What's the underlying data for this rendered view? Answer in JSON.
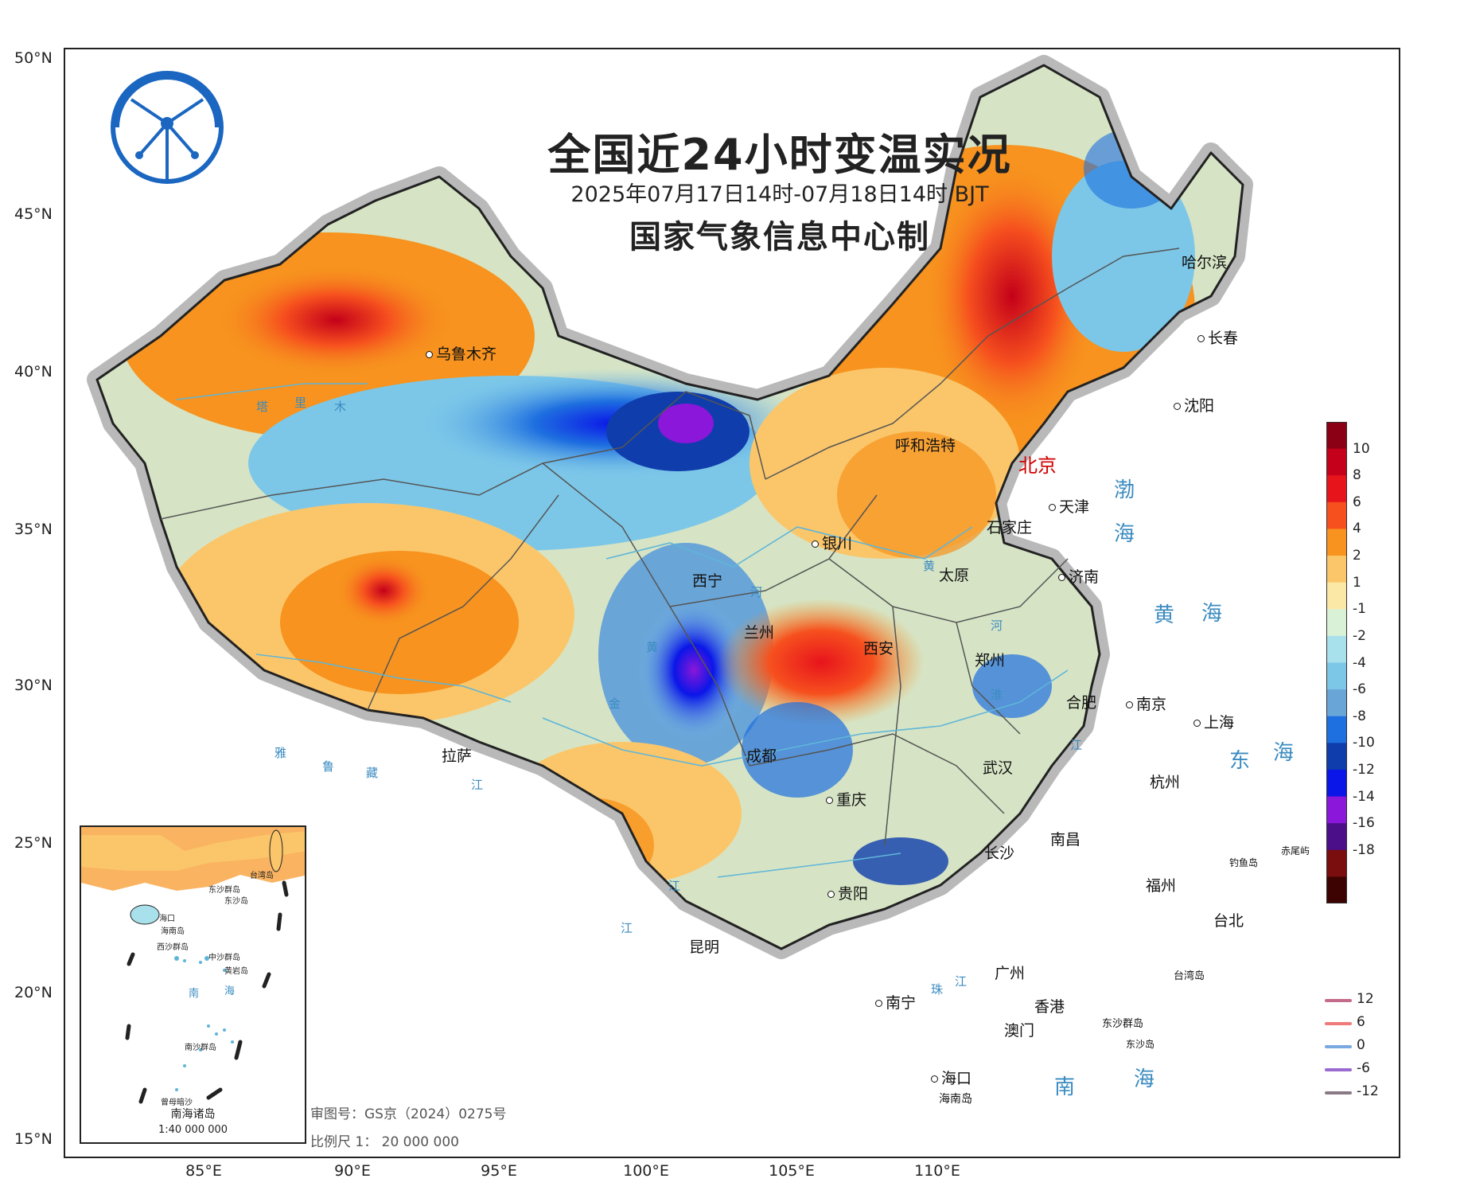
{
  "title": "全国近24小时变温实况",
  "subtitle": "2025年07月17日14时-07月18日14时 BJT",
  "maker": "国家气象信息中心制",
  "axes": {
    "lat_labels": [
      "50°N",
      "45°N",
      "40°N",
      "35°N",
      "30°N",
      "25°N",
      "20°N",
      "15°N"
    ],
    "lon_labels": [
      "85°E",
      "90°E",
      "95°E",
      "100°E",
      "105°E",
      "110°E"
    ]
  },
  "cities": [
    {
      "name": "乌鲁木齐"
    },
    {
      "name": "哈尔滨"
    },
    {
      "name": "长春"
    },
    {
      "name": "沈阳"
    },
    {
      "name": "呼和浩特"
    },
    {
      "name": "北京",
      "capital": true
    },
    {
      "name": "天津"
    },
    {
      "name": "石家庄"
    },
    {
      "name": "银川"
    },
    {
      "name": "太原"
    },
    {
      "name": "济南"
    },
    {
      "name": "西宁"
    },
    {
      "name": "兰州"
    },
    {
      "name": "西安"
    },
    {
      "name": "郑州"
    },
    {
      "name": "合肥"
    },
    {
      "name": "南京"
    },
    {
      "name": "上海"
    },
    {
      "name": "拉萨"
    },
    {
      "name": "成都"
    },
    {
      "name": "武汉"
    },
    {
      "name": "杭州"
    },
    {
      "name": "重庆"
    },
    {
      "name": "长沙"
    },
    {
      "name": "南昌"
    },
    {
      "name": "福州"
    },
    {
      "name": "贵阳"
    },
    {
      "name": "昆明"
    },
    {
      "name": "台北"
    },
    {
      "name": "广州"
    },
    {
      "name": "南宁"
    },
    {
      "name": "香港"
    },
    {
      "name": "澳门"
    },
    {
      "name": "海口"
    }
  ],
  "seas": [
    "渤",
    "海",
    "黄",
    "海",
    "东",
    "海",
    "南",
    "海"
  ],
  "islands": [
    "钓鱼岛",
    "赤尾屿",
    "台湾岛",
    "东沙群岛",
    "东沙岛",
    "海南岛"
  ],
  "inset": {
    "title": "南海诸岛",
    "scale": "1:40 000 000",
    "labels": [
      "台湾岛",
      "东沙群岛",
      "东沙岛",
      "海口",
      "海南岛",
      "西沙群岛",
      "中沙群岛",
      "黄岩岛",
      "南",
      "海",
      "南沙群岛",
      "曾母暗沙"
    ]
  },
  "review_no": "审图号：GS京（2024）0275号",
  "scale_text": "比例尺 1： 20 000 000",
  "legend": {
    "ticks": [
      "10",
      "8",
      "6",
      "4",
      "2",
      "1",
      "-1",
      "-2",
      "-4",
      "-6",
      "-8",
      "-10",
      "-12",
      "-14",
      "-16",
      "-18"
    ],
    "colors": [
      "#8b0015",
      "#c4001a",
      "#e8141c",
      "#f6501e",
      "#f7931e",
      "#fbc66a",
      "#fbe8a6",
      "#d9f2d7",
      "#a8e0ec",
      "#7cc7e8",
      "#6aa5d8",
      "#1e6fe0",
      "#0f3dab",
      "#0a16e8",
      "#8a17d9",
      "#4c0f8a",
      "#7a0e0e",
      "#3d0202"
    ],
    "contours": [
      {
        "value": "12",
        "color": "#c46a8a"
      },
      {
        "value": "6",
        "color": "#ef7a7a"
      },
      {
        "value": "0",
        "color": "#7aa8e0"
      },
      {
        "value": "-6",
        "color": "#9a6ad0"
      },
      {
        "value": "-12",
        "color": "#8a7a86"
      }
    ]
  },
  "rivers": [
    "塔",
    "里",
    "木",
    "雅",
    "鲁",
    "藏",
    "江",
    "黄",
    "河",
    "黄",
    "河",
    "淮",
    "江",
    "金",
    "江",
    "江",
    "珠",
    "江"
  ]
}
